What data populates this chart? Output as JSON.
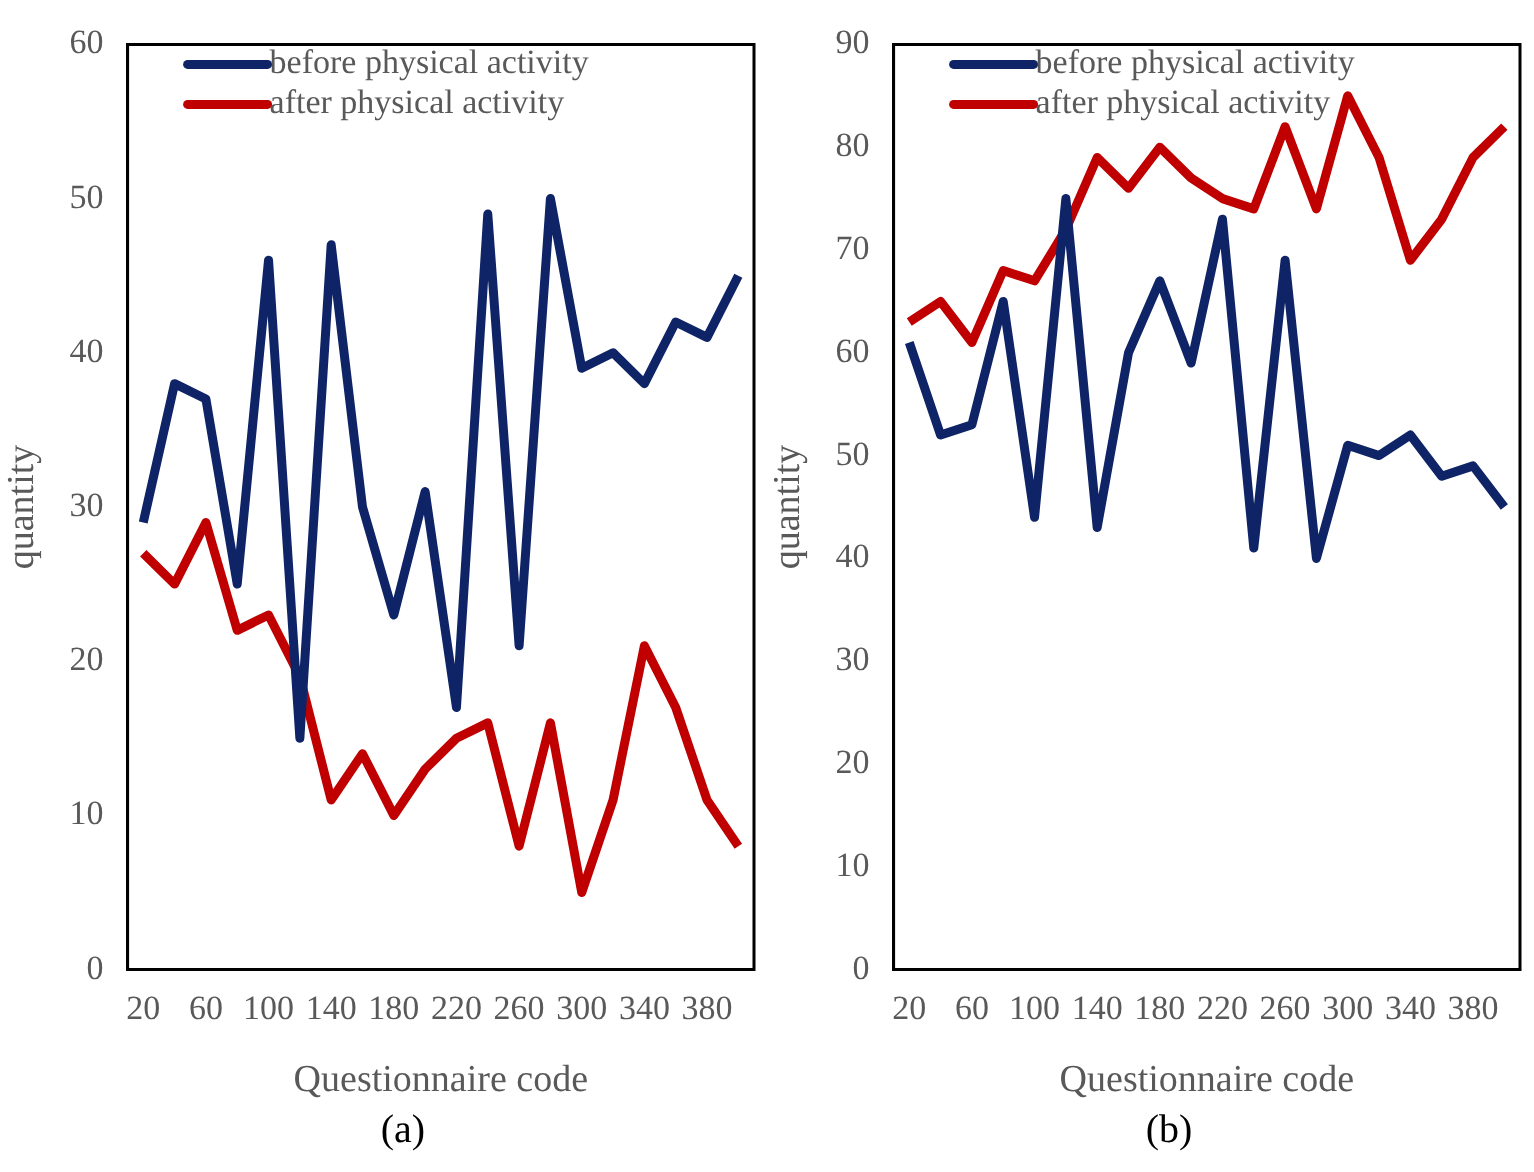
{
  "chart_data": [
    {
      "type": "line",
      "ylabel": "quantity",
      "xlabel": "Questionnaire code",
      "annotations": [
        "(a)"
      ],
      "categories": [
        "20",
        null,
        "60",
        null,
        "100",
        null,
        "140",
        null,
        "180",
        null,
        "220",
        null,
        "260",
        null,
        "300",
        null,
        "340",
        null,
        "380",
        null
      ],
      "ylim": [
        0,
        60
      ],
      "yticks": [
        0,
        10,
        20,
        30,
        40,
        50,
        60
      ],
      "grid": false,
      "legend": "top left",
      "marker": "none",
      "line_style": "solid",
      "series": [
        {
          "name": "before physical activity",
          "color": "#0f2466",
          "values": [
            29,
            38,
            37,
            25,
            46,
            15,
            47,
            30,
            23,
            31,
            17,
            49,
            21,
            50,
            39,
            40,
            38,
            42,
            41,
            45
          ]
        },
        {
          "name": "after physical activity",
          "color": "#c00000",
          "values": [
            27,
            25,
            29,
            22,
            23,
            19,
            11,
            14,
            10,
            13,
            15,
            16,
            8,
            16,
            5,
            11,
            21,
            17,
            11,
            8
          ]
        }
      ]
    },
    {
      "type": "line",
      "ylabel": "quantity",
      "xlabel": "Questionnaire code",
      "annotations": [
        "(b)"
      ],
      "categories": [
        "20",
        null,
        "60",
        null,
        "100",
        null,
        "140",
        null,
        "180",
        null,
        "220",
        null,
        "260",
        null,
        "300",
        null,
        "340",
        null,
        "380",
        null
      ],
      "ylim": [
        0,
        90
      ],
      "yticks": [
        0,
        10,
        20,
        30,
        40,
        50,
        60,
        70,
        80,
        90
      ],
      "grid": false,
      "legend": "top left",
      "marker": "none",
      "line_style": "solid",
      "series": [
        {
          "name": "before physical activity",
          "color": "#0f2466",
          "values": [
            61,
            52,
            53,
            65,
            44,
            75,
            43,
            60,
            67,
            59,
            73,
            41,
            69,
            40,
            51,
            50,
            52,
            48,
            49,
            45
          ]
        },
        {
          "name": "after physical activity",
          "color": "#c00000",
          "values": [
            63,
            65,
            61,
            68,
            67,
            72,
            79,
            76,
            80,
            77,
            75,
            74,
            82,
            74,
            85,
            79,
            69,
            73,
            79,
            82
          ]
        }
      ]
    }
  ]
}
